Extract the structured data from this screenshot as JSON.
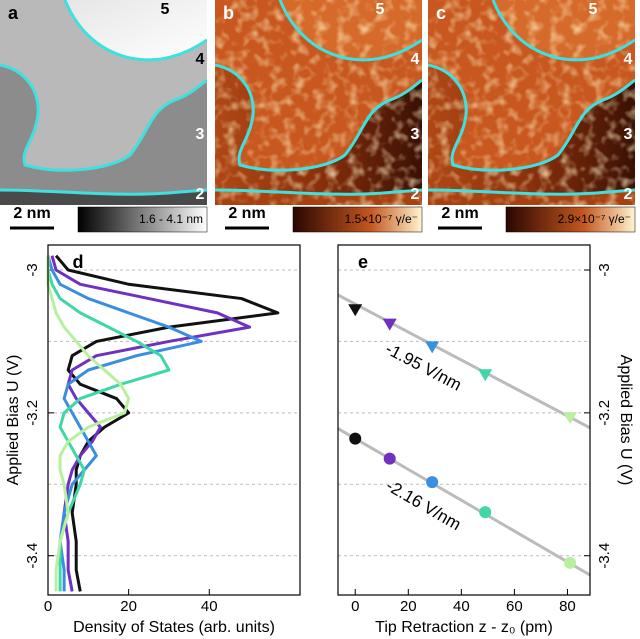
{
  "images": [
    {
      "label": "a",
      "scale_bar": "2 nm",
      "colorbar_label": "1.6 - 4.1 nm",
      "terraces": [
        "5",
        "4",
        "3",
        "2"
      ]
    },
    {
      "label": "b",
      "scale_bar": "2 nm",
      "colorbar_label": "1.5×10⁻⁷ γ/e⁻",
      "terraces": [
        "5",
        "4",
        "3",
        "2"
      ]
    },
    {
      "label": "c",
      "scale_bar": "2 nm",
      "colorbar_label": "2.9×10⁻⁷ γ/e⁻",
      "terraces": [
        "5",
        "4",
        "3",
        "2"
      ]
    }
  ],
  "chart_data": [
    {
      "type": "line",
      "label": "d",
      "xlabel": "Density of States (arb. units)",
      "ylabel": "Applied Bias U (V)",
      "xlim": [
        0,
        62.5
      ],
      "xticks": [
        0,
        20,
        40
      ],
      "ylim": [
        -3.455,
        -2.965
      ],
      "yticks": [
        -3.0,
        -3.2,
        -3.4
      ],
      "grid_lines": [
        -3.0,
        -3.1,
        -3.2,
        -3.3,
        -3.4
      ],
      "y": [
        -2.98,
        -3.0,
        -3.02,
        -3.04,
        -3.06,
        -3.08,
        -3.1,
        -3.12,
        -3.14,
        -3.16,
        -3.18,
        -3.2,
        -3.22,
        -3.24,
        -3.26,
        -3.28,
        -3.3,
        -3.34,
        -3.38,
        -3.42,
        -3.45
      ],
      "series": [
        {
          "color": "#111111",
          "values": [
            2,
            5,
            20,
            48,
            57,
            30,
            12,
            6,
            5,
            8,
            17,
            20,
            14,
            10,
            8,
            7,
            7,
            6,
            7,
            7,
            8
          ]
        },
        {
          "color": "#7030c0",
          "values": [
            1,
            2,
            8,
            25,
            42,
            50,
            30,
            12,
            6,
            5,
            7,
            10,
            13,
            11,
            8,
            6,
            5,
            4,
            5,
            5,
            6
          ]
        },
        {
          "color": "#3a8ee0",
          "values": [
            0,
            1,
            3,
            10,
            20,
            30,
            38,
            22,
            10,
            5,
            4,
            6,
            8,
            10,
            12,
            9,
            6,
            4,
            3,
            4,
            4
          ]
        },
        {
          "color": "#3fd6a8",
          "values": [
            0,
            0,
            1,
            3,
            8,
            15,
            22,
            28,
            30,
            18,
            8,
            4,
            3,
            5,
            7,
            9,
            8,
            5,
            3,
            3,
            3
          ]
        },
        {
          "color": "#b8f0a0",
          "values": [
            0,
            0,
            0,
            1,
            2,
            4,
            7,
            10,
            14,
            18,
            20,
            19,
            10,
            5,
            3,
            3,
            4,
            5,
            3,
            2,
            2
          ]
        }
      ]
    },
    {
      "type": "scatter",
      "label": "e",
      "xlabel": "Tip Retraction z - z₀ (pm)",
      "ylabel": "Applied Bias U (V)",
      "xlim": [
        -6.5,
        88.5
      ],
      "xticks": [
        0,
        20,
        40,
        60,
        80
      ],
      "ylim": [
        -3.455,
        -2.965
      ],
      "yticks": [
        -3.0,
        -3.2,
        -3.4
      ],
      "grid_lines": [
        -3.0,
        -3.1,
        -3.2,
        -3.3,
        -3.4
      ],
      "x": [
        0,
        13,
        29,
        49,
        81
      ],
      "series": [
        {
          "marker": "triangle",
          "colors": [
            "#111111",
            "#7030c0",
            "#3a8ee0",
            "#3fd6a8",
            "#b8f0a0"
          ],
          "values": [
            -3.055,
            -3.075,
            -3.107,
            -3.146,
            -3.206
          ]
        },
        {
          "marker": "circle",
          "colors": [
            "#111111",
            "#7030c0",
            "#3a8ee0",
            "#3fd6a8",
            "#b8f0a0"
          ],
          "values": [
            -3.236,
            -3.264,
            -3.297,
            -3.339,
            -3.41
          ]
        }
      ],
      "fits": [
        {
          "label": "-1.95 V/nm",
          "x": [
            -6.5,
            88.5
          ],
          "values": [
            -3.035,
            -3.221
          ]
        },
        {
          "label": "-2.16 V/nm",
          "x": [
            -6.5,
            88.5
          ],
          "values": [
            -3.222,
            -3.427
          ]
        }
      ]
    }
  ]
}
